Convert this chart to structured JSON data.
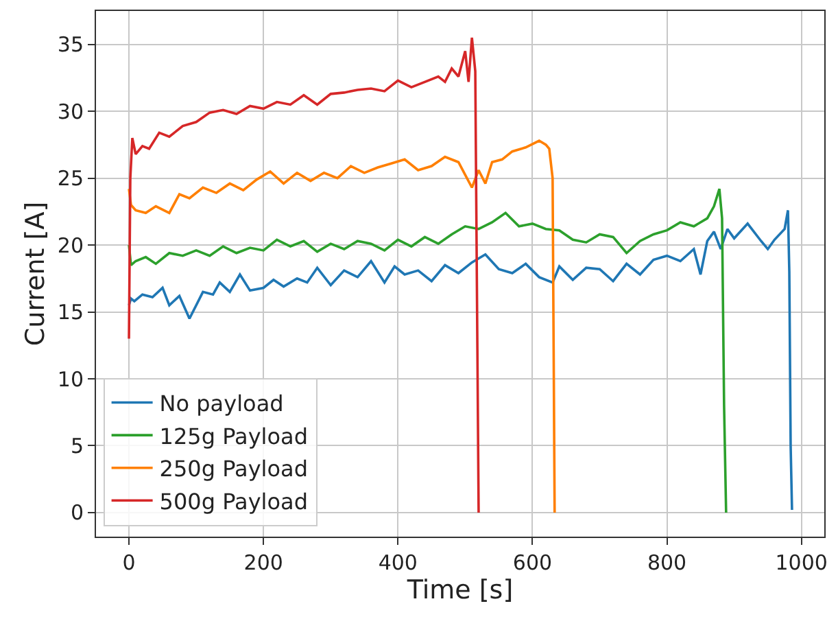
{
  "chart_data": {
    "type": "line",
    "xlabel": "Time [s]",
    "ylabel": "Current [A]",
    "xlim": [
      -49,
      1034
    ],
    "ylim": [
      -1.8,
      37.5
    ],
    "xticks": [
      0,
      200,
      400,
      600,
      800,
      1000
    ],
    "yticks": [
      0,
      5,
      10,
      15,
      20,
      25,
      30,
      35
    ],
    "grid": true,
    "legend": "bottom left",
    "line_style": "solid",
    "marker": "none",
    "series": [
      {
        "name": "No payload",
        "color": "#1f77b4",
        "x": [
          0,
          3,
          8,
          20,
          35,
          50,
          60,
          75,
          90,
          110,
          125,
          135,
          150,
          165,
          180,
          200,
          215,
          230,
          250,
          265,
          280,
          300,
          320,
          340,
          360,
          380,
          395,
          410,
          430,
          450,
          470,
          490,
          510,
          530,
          550,
          570,
          590,
          610,
          630,
          640,
          660,
          680,
          700,
          720,
          740,
          760,
          780,
          800,
          820,
          840,
          850,
          860,
          870,
          880,
          890,
          900,
          920,
          940,
          950,
          960,
          975,
          980,
          982,
          984,
          986
        ],
        "values": [
          15.5,
          16,
          15.8,
          16.3,
          16.1,
          16.8,
          15.5,
          16.2,
          14.5,
          16.5,
          16.3,
          17.2,
          16.5,
          17.8,
          16.6,
          16.8,
          17.4,
          16.9,
          17.5,
          17.2,
          18.3,
          17,
          18.1,
          17.6,
          18.8,
          17.2,
          18.4,
          17.8,
          18.1,
          17.3,
          18.5,
          17.9,
          18.7,
          19.3,
          18.2,
          17.9,
          18.6,
          17.6,
          17.2,
          18.4,
          17.4,
          18.3,
          18.2,
          17.3,
          18.6,
          17.8,
          18.9,
          19.2,
          18.8,
          19.7,
          17.8,
          20.3,
          21,
          19.7,
          21.2,
          20.5,
          21.6,
          20.3,
          19.7,
          20.4,
          21.2,
          22.6,
          18,
          5,
          0.2
        ]
      },
      {
        "name": "125g Payload",
        "color": "#2ca02c",
        "x": [
          0,
          3,
          10,
          25,
          40,
          60,
          80,
          100,
          120,
          140,
          160,
          180,
          200,
          220,
          240,
          260,
          280,
          300,
          320,
          340,
          360,
          380,
          400,
          420,
          440,
          460,
          480,
          500,
          520,
          540,
          560,
          580,
          600,
          620,
          640,
          660,
          680,
          700,
          720,
          740,
          760,
          780,
          800,
          820,
          840,
          860,
          870,
          878,
          882,
          885,
          888
        ],
        "values": [
          20,
          18.5,
          18.8,
          19.1,
          18.6,
          19.4,
          19.2,
          19.6,
          19.2,
          19.9,
          19.4,
          19.8,
          19.6,
          20.4,
          19.9,
          20.3,
          19.5,
          20.1,
          19.7,
          20.3,
          20.1,
          19.6,
          20.4,
          19.9,
          20.6,
          20.1,
          20.8,
          21.4,
          21.2,
          21.7,
          22.4,
          21.4,
          21.6,
          21.2,
          21.1,
          20.4,
          20.2,
          20.8,
          20.6,
          19.4,
          20.3,
          20.8,
          21.1,
          21.7,
          21.4,
          22,
          22.9,
          24.2,
          22,
          8,
          0
        ]
      },
      {
        "name": "250g Payload",
        "color": "#ff7f00",
        "x": [
          0,
          3,
          10,
          25,
          40,
          60,
          75,
          90,
          110,
          130,
          150,
          170,
          190,
          210,
          230,
          250,
          270,
          290,
          310,
          330,
          350,
          370,
          390,
          410,
          430,
          450,
          470,
          490,
          510,
          520,
          530,
          540,
          555,
          570,
          590,
          610,
          620,
          625,
          630,
          633
        ],
        "values": [
          24.2,
          23,
          22.6,
          22.4,
          22.9,
          22.4,
          23.8,
          23.5,
          24.3,
          23.9,
          24.6,
          24.1,
          24.9,
          25.5,
          24.6,
          25.4,
          24.8,
          25.4,
          25,
          25.9,
          25.4,
          25.8,
          26.1,
          26.4,
          25.6,
          25.9,
          26.6,
          26.2,
          24.3,
          25.6,
          24.6,
          26.2,
          26.4,
          27,
          27.3,
          27.8,
          27.5,
          27.2,
          25,
          0
        ]
      },
      {
        "name": "500g Payload",
        "color": "#d62728",
        "x": [
          0,
          2,
          5,
          10,
          20,
          30,
          45,
          60,
          80,
          100,
          120,
          140,
          160,
          180,
          200,
          220,
          240,
          260,
          280,
          300,
          320,
          340,
          360,
          380,
          400,
          420,
          440,
          460,
          470,
          480,
          490,
          500,
          505,
          510,
          515,
          520
        ],
        "values": [
          13,
          25,
          28,
          26.8,
          27.4,
          27.2,
          28.4,
          28.1,
          28.9,
          29.2,
          29.9,
          30.1,
          29.8,
          30.4,
          30.2,
          30.7,
          30.5,
          31.2,
          30.5,
          31.3,
          31.4,
          31.6,
          31.7,
          31.5,
          32.3,
          31.8,
          32.2,
          32.6,
          32.2,
          33.2,
          32.6,
          34.5,
          32.2,
          35.5,
          33,
          0
        ]
      }
    ]
  }
}
